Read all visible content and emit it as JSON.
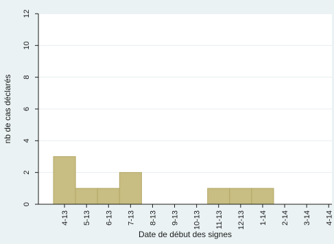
{
  "chart_data": {
    "type": "bar",
    "title": "",
    "xlabel": "Date de début des signes",
    "ylabel": "nb de cas déclarés",
    "categories": [
      "4-13",
      "5-13",
      "6-13",
      "7-13",
      "8-13",
      "9-13",
      "10-13",
      "11-13",
      "12-13",
      "1-14",
      "2-14",
      "3-14",
      "4-14"
    ],
    "values": [
      3,
      1,
      1,
      2,
      0,
      0,
      0,
      1,
      1,
      1,
      0,
      0,
      0
    ],
    "ylim": [
      0,
      12
    ],
    "yticks": [
      0,
      2,
      4,
      6,
      8,
      10,
      12
    ],
    "grid": true,
    "bar_color": "#c8bd82",
    "bar_edge_color": "#b3a766",
    "plot_bg": "#ffffff",
    "page_bg": "#eaf2f3",
    "grid_color": "#e8eef0"
  }
}
